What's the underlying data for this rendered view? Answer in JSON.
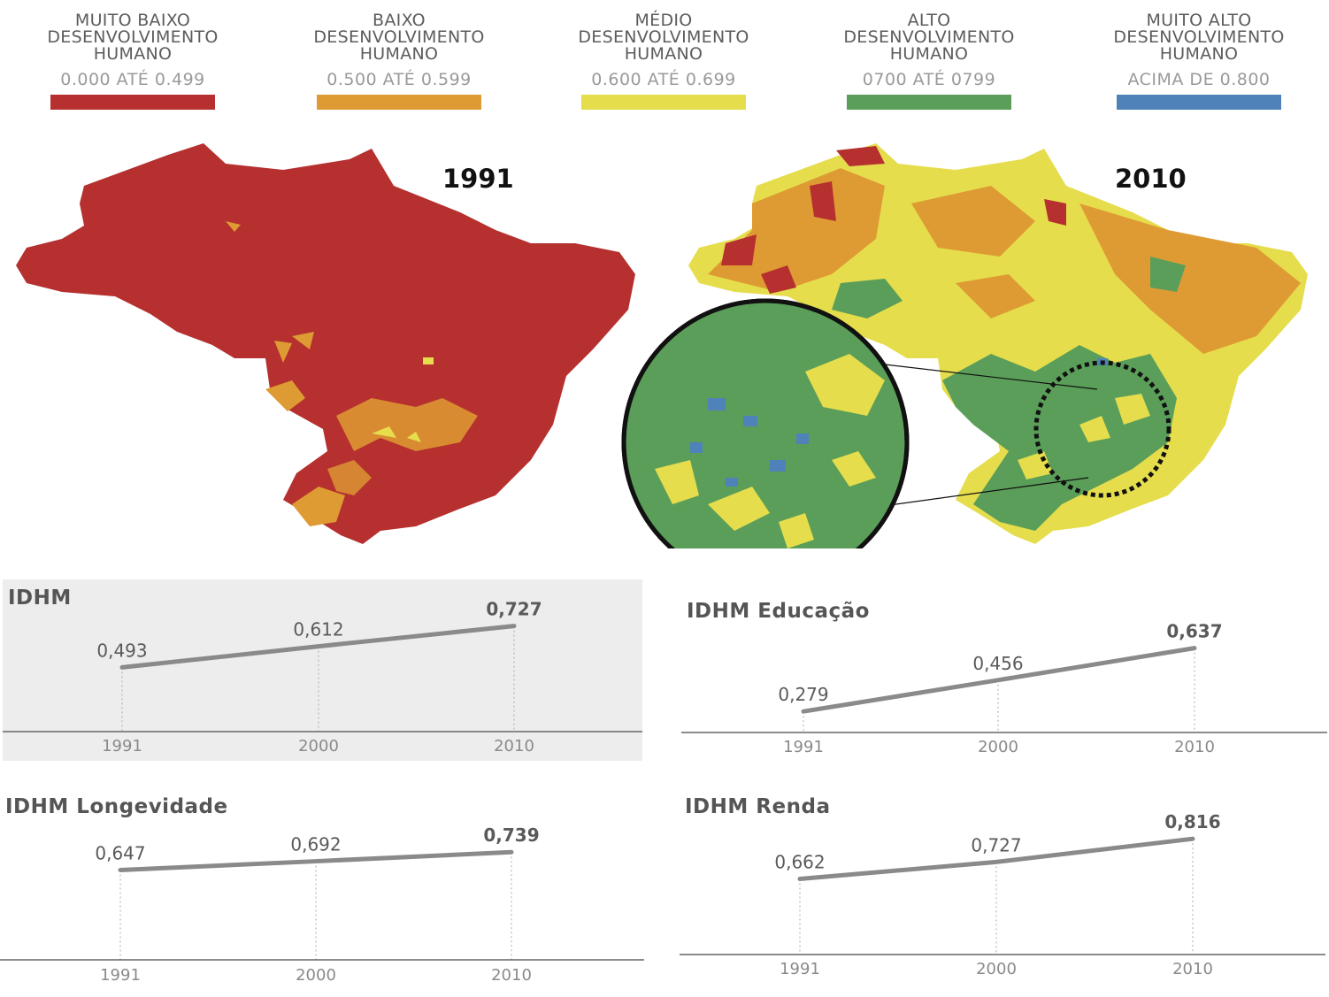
{
  "legend": [
    {
      "title": "MUITO BAIXO\nDESENVOLVIMENTO\nHUMANO",
      "range": "0.000 ATÉ 0.499",
      "color": "#b5302f"
    },
    {
      "title": "BAIXO\nDESENVOLVIMENTO\nHUMANO",
      "range": "0.500 ATÉ 0.599",
      "color": "#df9b33"
    },
    {
      "title": "MÉDIO\nDESENVOLVIMENTO\nHUMANO",
      "range": "0.600 ATÉ 0.699",
      "color": "#e5dd4c"
    },
    {
      "title": "ALTO\nDESENVOLVIMENTO\nHUMANO",
      "range": "0700 ATÉ 0799",
      "color": "#5a9e59"
    },
    {
      "title": "MUITO ALTO\nDESENVOLVIMENTO\nHUMANO",
      "range": "ACIMA DE 0.800",
      "color": "#4f82b8"
    }
  ],
  "maps": [
    {
      "year": "1991",
      "base_color": "#b5302f"
    },
    {
      "year": "2010",
      "base_color": "#5a9e59"
    }
  ],
  "chart_data": [
    {
      "type": "line",
      "title": "IDHM",
      "categories": [
        "1991",
        "2000",
        "2010"
      ],
      "values": [
        0.493,
        0.612,
        0.727
      ],
      "labels": [
        "0,493",
        "0,612",
        "0,727"
      ],
      "line_color": "#8a8a8a"
    },
    {
      "type": "line",
      "title": "IDHM Educação",
      "categories": [
        "1991",
        "2000",
        "2010"
      ],
      "values": [
        0.279,
        0.456,
        0.637
      ],
      "labels": [
        "0,279",
        "0,456",
        "0,637"
      ],
      "line_color": "#8a8a8a"
    },
    {
      "type": "line",
      "title": "IDHM Longevidade",
      "categories": [
        "1991",
        "2000",
        "2010"
      ],
      "values": [
        0.647,
        0.692,
        0.739
      ],
      "labels": [
        "0,647",
        "0,692",
        "0,739"
      ],
      "line_color": "#8a8a8a"
    },
    {
      "type": "line",
      "title": "IDHM Renda",
      "categories": [
        "1991",
        "2000",
        "2010"
      ],
      "values": [
        0.662,
        0.727,
        0.816
      ],
      "labels": [
        "0,662",
        "0,727",
        "0,816"
      ],
      "line_color": "#8a8a8a"
    }
  ]
}
